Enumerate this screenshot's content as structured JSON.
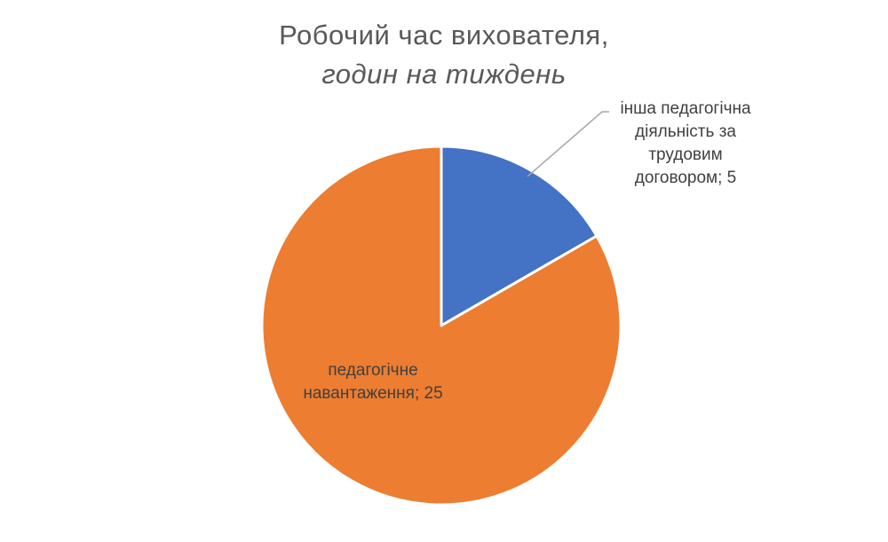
{
  "chart_data": {
    "type": "pie",
    "title": "Робочий час вихователя,",
    "subtitle": "годин на тиждень",
    "slices": [
      {
        "label": "інша педагогічна діяльність за трудовим договором",
        "value": 5,
        "label_text": "інша педагогічна діяльність за трудовим договором; 5",
        "color": "#4472C4"
      },
      {
        "label": "педагогічне навантаження",
        "value": 25,
        "label_text": "педагогічне навантаження; 25",
        "color": "#ED7D31"
      }
    ],
    "legend": "none",
    "start_angle": "12 o'clock, clockwise"
  }
}
